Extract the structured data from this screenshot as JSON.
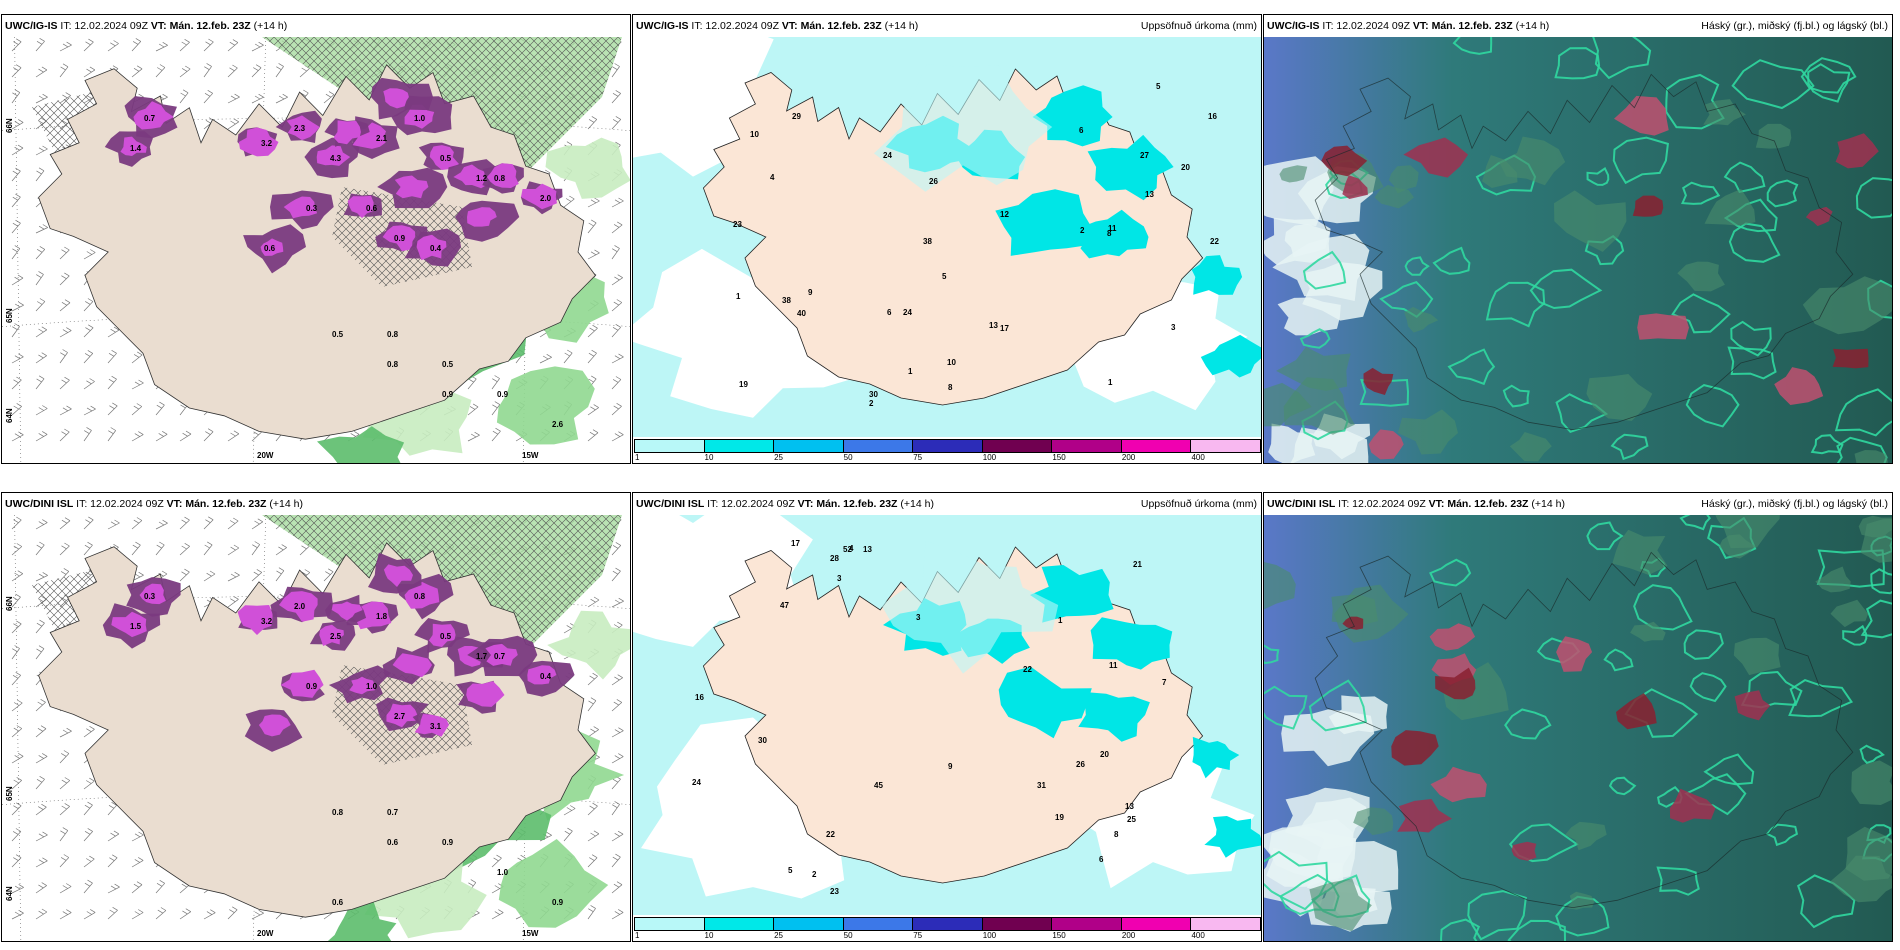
{
  "panels": [
    {
      "id": "p1",
      "type": "snow",
      "title_model": "UWC/IG-IS",
      "title_rest": "IT: 12.02.2024 09Z",
      "title_vt": "VT: Mán. 12.feb. 23Z",
      "title_lead": "(+14 h)",
      "title_right": "",
      "axis_lat": [
        "66N",
        "65N",
        "64N"
      ],
      "axis_lon": [
        "20W",
        "15W"
      ],
      "value_labels": [
        "0.7",
        "1.4",
        "3.2",
        "2.3",
        "4.3",
        "2.1",
        "1.0",
        "0.5",
        "1.2",
        "0.8",
        "2.0",
        "0.6",
        "0.9",
        "0.4",
        "0.3",
        "0.6",
        "0.8",
        "0.5",
        "0.9",
        "2.6",
        "0.5",
        "0.8",
        "0.9"
      ]
    },
    {
      "id": "p2",
      "type": "precip",
      "title_model": "UWC/IG-IS",
      "title_rest": "IT: 12.02.2024 09Z",
      "title_vt": "VT: Mán. 12.feb. 23Z",
      "title_lead": "(+14 h)",
      "title_right": "Uppsöfnuð úrkoma (mm)",
      "value_labels": [
        "2",
        "1",
        "11",
        "5",
        "10",
        "24",
        "38",
        "38",
        "24",
        "22",
        "40",
        "29",
        "30",
        "20",
        "19",
        "16",
        "17",
        "26",
        "23",
        "12",
        "13",
        "10",
        "9",
        "8",
        "6",
        "3",
        "1",
        "4",
        "5",
        "27",
        "13",
        "8",
        "2",
        "6",
        "1"
      ],
      "colorbar_ticks": [
        "1",
        "10",
        "25",
        "50",
        "75",
        "100",
        "150",
        "200",
        "400"
      ],
      "colorbar_colors": [
        "#b8f8f8",
        "#00e8e8",
        "#00c0f0",
        "#3c78e8",
        "#2c2cb8",
        "#700050",
        "#b00088",
        "#f000b0",
        "#f8b8f0"
      ]
    },
    {
      "id": "p3",
      "type": "cloud",
      "title_model": "UWC/IG-IS",
      "title_rest": "IT: 12.02.2024 09Z",
      "title_vt": "VT: Mán. 12.feb. 23Z",
      "title_lead": "(+14 h)",
      "title_right": "Háský (gr.), miðský (fj.bl.) og lágský (bl.)"
    },
    {
      "id": "p4",
      "type": "snow",
      "title_model": "UWC/DINI ISL",
      "title_rest": "IT: 12.02.2024 09Z",
      "title_vt": "VT: Mán. 12.feb. 23Z",
      "title_lead": "(+14 h)",
      "title_right": "",
      "axis_lat": [
        "66N",
        "65N",
        "64N"
      ],
      "axis_lon": [
        "20W",
        "15W"
      ],
      "value_labels": [
        "0.3",
        "1.5",
        "3.2",
        "2.0",
        "2.5",
        "1.8",
        "0.8",
        "0.5",
        "1.7",
        "0.7",
        "0.4",
        "1.0",
        "2.7",
        "3.1",
        "0.9",
        "0.6",
        "0.7",
        "0.9",
        "1.0",
        "0.9",
        "0.8",
        "0.6"
      ]
    },
    {
      "id": "p5",
      "type": "precip",
      "title_model": "UWC/DINI ISL",
      "title_rest": "IT: 12.02.2024 09Z",
      "title_vt": "VT: Mán. 12.feb. 23Z",
      "title_lead": "(+14 h)",
      "title_right": "Uppsöfnuð úrkoma (mm)",
      "value_labels": [
        "3",
        "6",
        "11",
        "19",
        "47",
        "31",
        "25",
        "23",
        "22",
        "30",
        "45",
        "24",
        "16",
        "20",
        "17",
        "13",
        "21",
        "9",
        "8",
        "7",
        "5",
        "4",
        "2",
        "1",
        "26",
        "28",
        "22",
        "13",
        "52",
        "3"
      ],
      "colorbar_ticks": [
        "1",
        "10",
        "25",
        "50",
        "75",
        "100",
        "150",
        "200",
        "400"
      ],
      "colorbar_colors": [
        "#b8f8f8",
        "#00e8e8",
        "#00c0f0",
        "#3c78e8",
        "#2c2cb8",
        "#700050",
        "#b00088",
        "#f000b0",
        "#f8b8f0"
      ]
    },
    {
      "id": "p6",
      "type": "cloud",
      "title_model": "UWC/DINI ISL",
      "title_rest": "IT: 12.02.2024 09Z",
      "title_vt": "VT: Mán. 12.feb. 23Z",
      "title_lead": "(+14 h)",
      "title_right": "Háský (gr.), miðský (fj.bl.) og lágský (bl.)"
    }
  ]
}
